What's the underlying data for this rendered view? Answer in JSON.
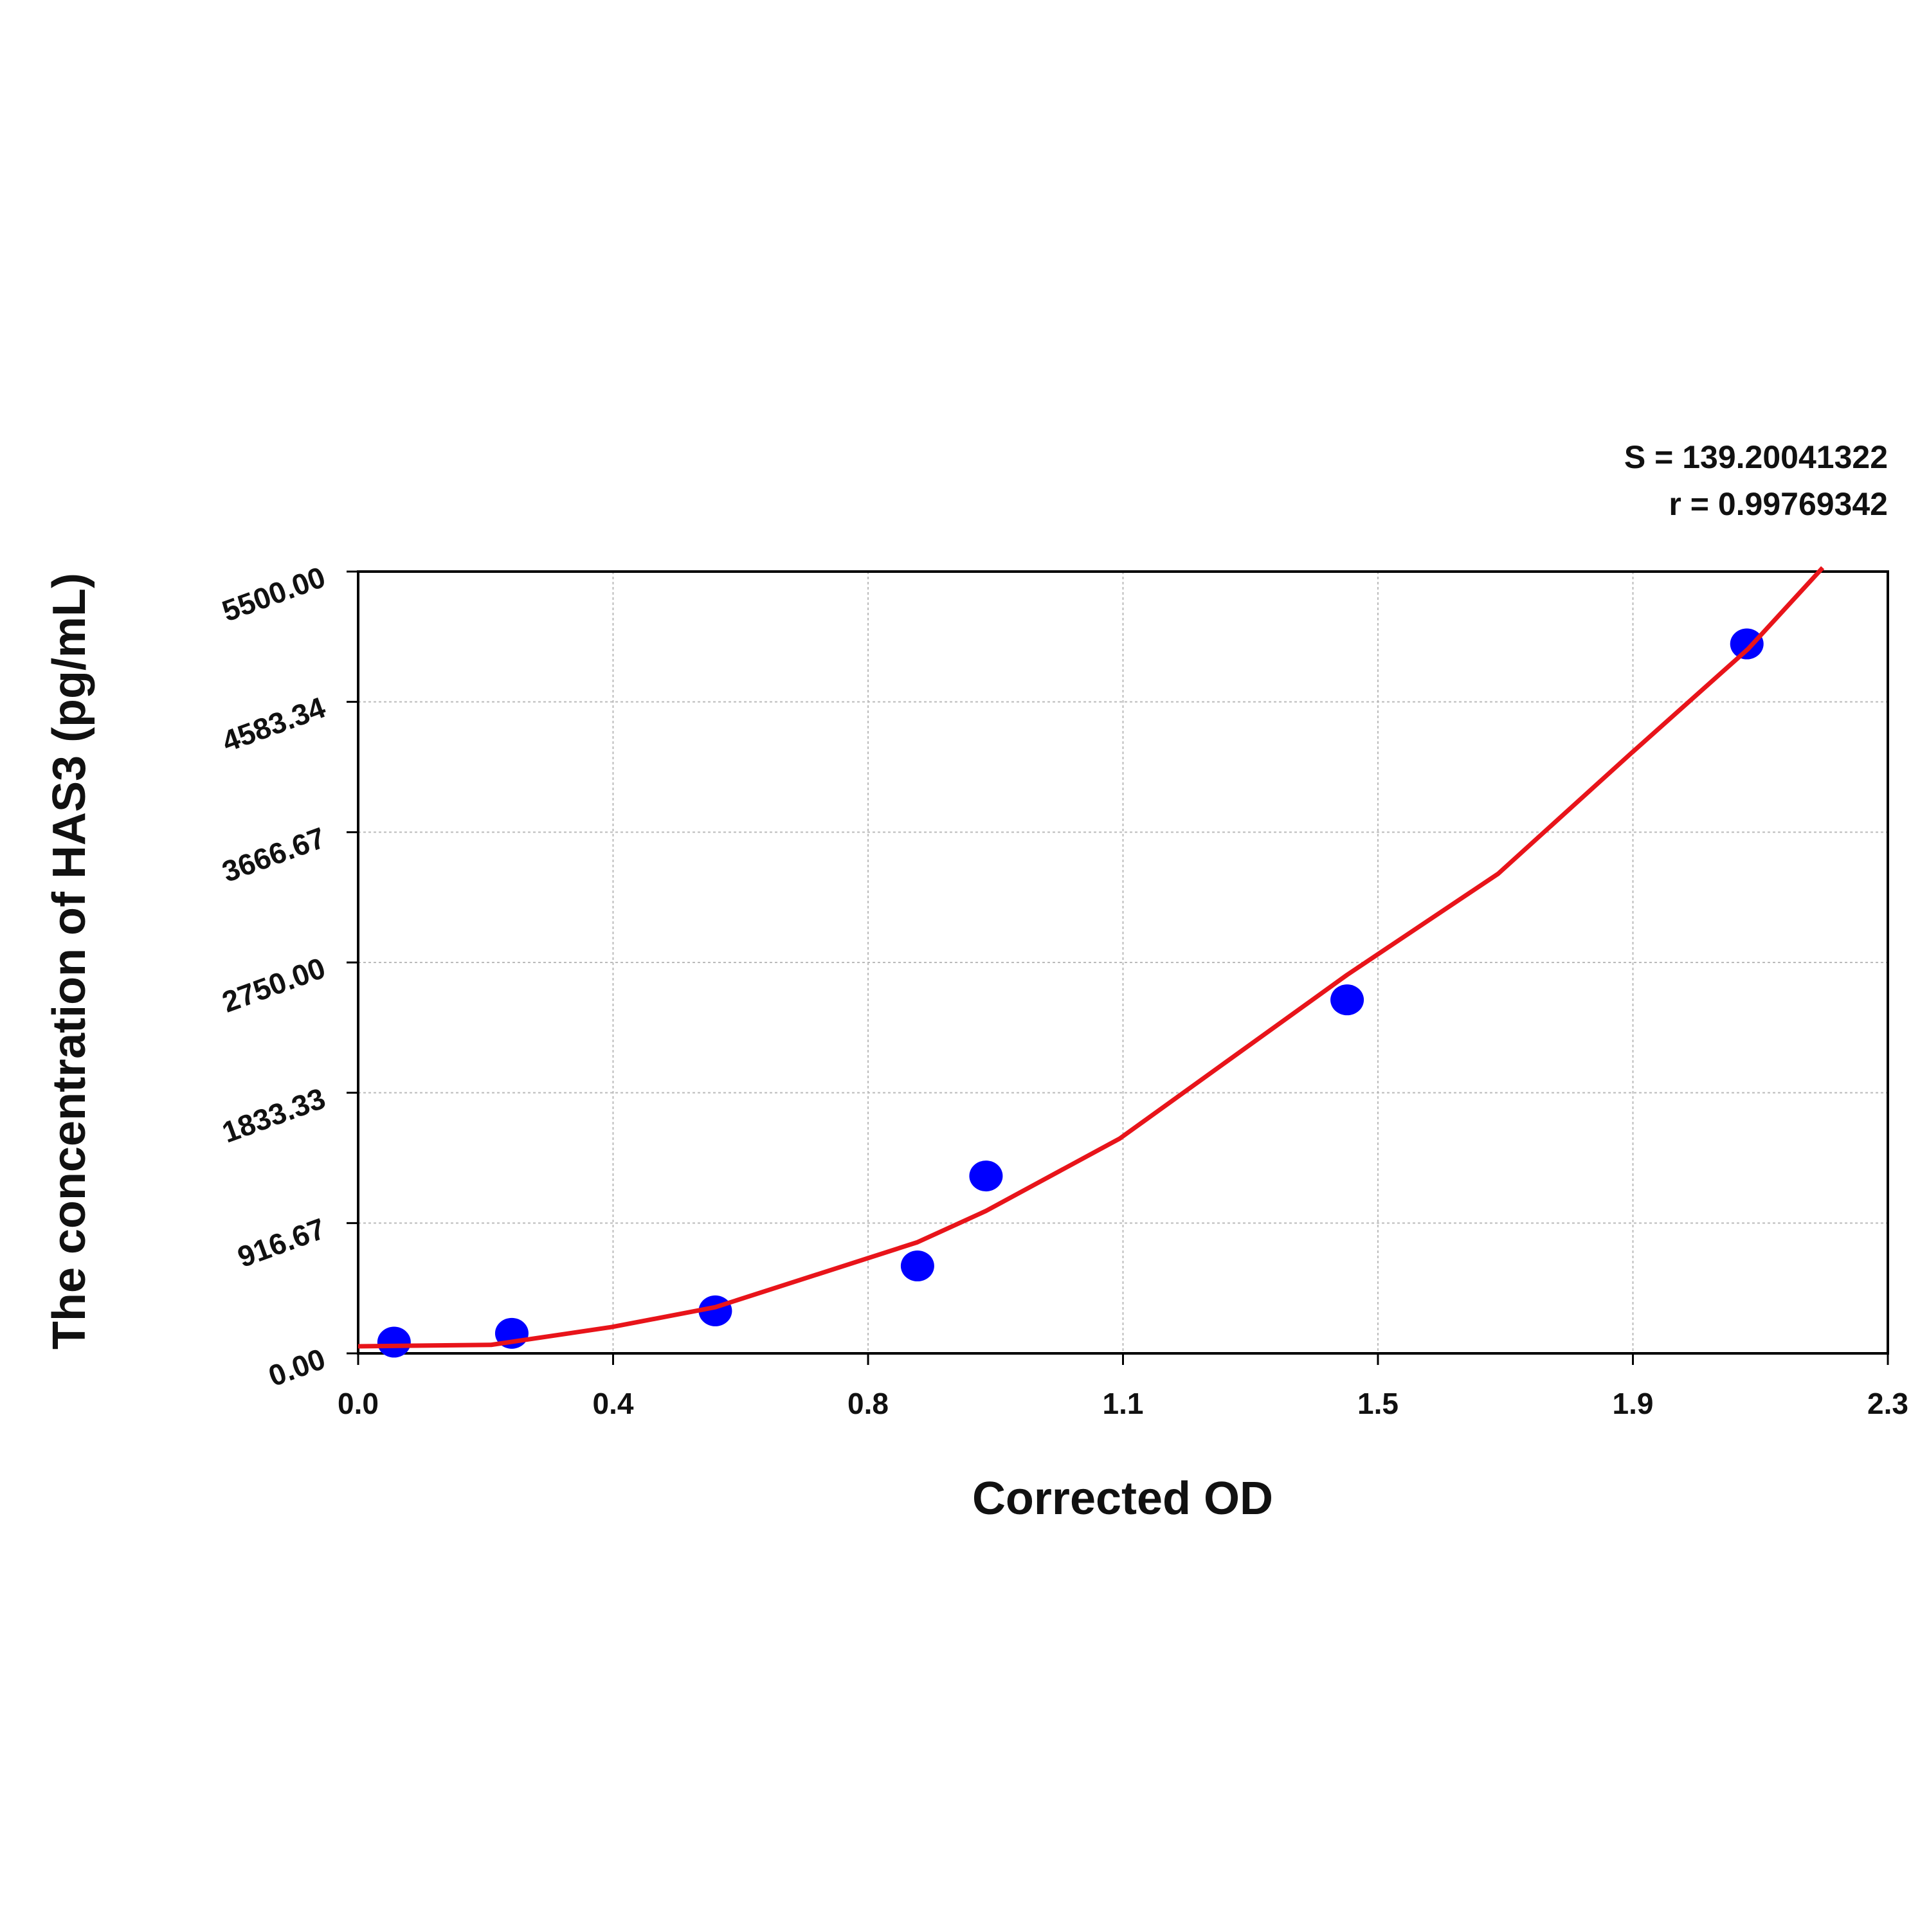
{
  "chart_data": {
    "type": "scatter",
    "x_label": "Corrected OD",
    "y_label": "The concentration of HAS3 (pg/mL)",
    "annotations": [
      "S = 139.20041322",
      "r = 0.99769342"
    ],
    "xlim": [
      0,
      2.3
    ],
    "xticks": [
      {
        "value": 0,
        "label": "0.0"
      },
      {
        "value": 0.3833,
        "label": "0.4"
      },
      {
        "value": 0.7667,
        "label": "0.8"
      },
      {
        "value": 1.15,
        "label": "1.1"
      },
      {
        "value": 1.5333,
        "label": "1.5"
      },
      {
        "value": 1.9167,
        "label": "1.9"
      },
      2.3
    ],
    "ylim": [
      0,
      5500
    ],
    "yticks": [
      {
        "value": 0,
        "label": "0.00"
      },
      916.67,
      1833.33,
      {
        "value": 2750,
        "label": "2750.00"
      },
      3666.67,
      4583.34,
      {
        "value": 5500,
        "label": "5500.00"
      }
    ],
    "grid": true,
    "series": [
      {
        "type": "scatter",
        "color": "#0000ff",
        "x": [
          0.054,
          0.231,
          0.537,
          0.841,
          0.944,
          1.487,
          2.088
        ],
        "values": [
          79,
          141,
          299,
          615,
          1248,
          2487,
          4991
        ]
      },
      {
        "type": "line",
        "color": "#e8141a",
        "x": [
          0,
          0.2,
          0.381,
          0.537,
          0.841,
          0.944,
          1.145,
          1.487,
          1.714,
          1.911,
          2.09,
          2.202
        ],
        "values": [
          50,
          60,
          185,
          325,
          782,
          1002,
          1511,
          2663,
          3374,
          4209,
          4956,
          5527
        ]
      }
    ]
  }
}
